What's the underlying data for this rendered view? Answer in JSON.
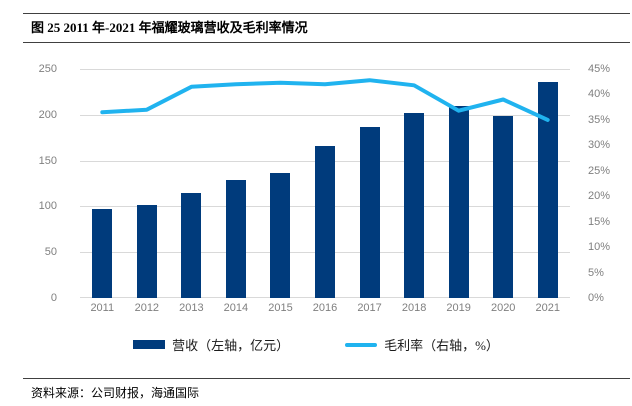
{
  "title": "图 25 2011 年-2021 年福耀玻璃营收及毛利率情况",
  "legend": {
    "revenue": "营收（左轴，亿元）",
    "margin": "毛利率（右轴，%）"
  },
  "source": {
    "label": "资料来源：",
    "text": "公司财报，海通国际"
  },
  "colors": {
    "bar": "#003B7C",
    "line": "#20B3EF",
    "grid": "#D9D9D9",
    "rule": "#404040",
    "tick_text": "#7F7F7F"
  },
  "chart_data": {
    "type": "combo",
    "categories": [
      "2011",
      "2012",
      "2013",
      "2014",
      "2015",
      "2016",
      "2017",
      "2018",
      "2019",
      "2020",
      "2021"
    ],
    "series": [
      {
        "name": "营收（左轴，亿元）",
        "type": "bar",
        "axis": "left",
        "values": [
          97,
          102,
          115,
          129,
          136,
          166,
          187,
          202,
          210,
          199,
          236
        ]
      },
      {
        "name": "毛利率（右轴，%）",
        "type": "line",
        "axis": "right",
        "values": [
          36.5,
          37.0,
          41.5,
          42.0,
          42.3,
          42.0,
          42.8,
          41.8,
          36.8,
          39.0,
          35.0
        ]
      }
    ],
    "left_axis": {
      "min": 0,
      "max": 250,
      "ticks": [
        0,
        50,
        100,
        150,
        200,
        250
      ]
    },
    "right_axis": {
      "min": 0,
      "max": 45,
      "ticks": [
        "0%",
        "5%",
        "10%",
        "15%",
        "20%",
        "25%",
        "30%",
        "35%",
        "40%",
        "45%"
      ]
    },
    "grid": "horizontal",
    "legend_position": "bottom"
  }
}
